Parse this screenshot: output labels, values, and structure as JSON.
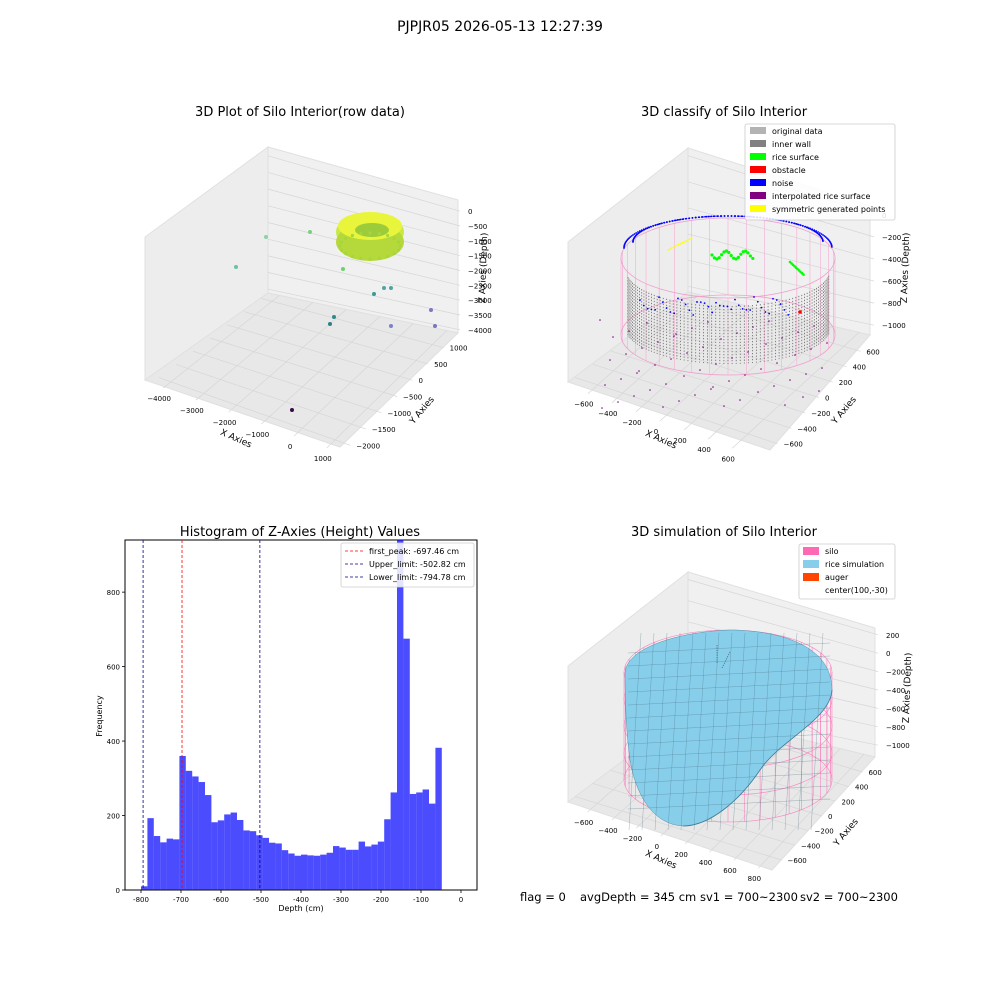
{
  "figure": {
    "suptitle": "PJPJR05 2026-05-13 12:27:39",
    "footer": {
      "flag": "flag = 0",
      "avg_depth": "avgDepth = 345 cm",
      "sv1": "sv1 = 700~2300",
      "sv2": "sv2 = 700~2300"
    }
  },
  "colors": {
    "hist_bar": "#0000ff",
    "first_peak": "#ff0000",
    "limits": "#00008b",
    "original": "#b3b3b3",
    "inner_wall": "#808080",
    "rice_surface": "#00ff00",
    "obstacle": "#ff0000",
    "noise": "#0000ff",
    "interp_surface": "#800080",
    "symmetric": "#ffff00",
    "silo": "#ff69b4",
    "rice_sim": "#87ceeb",
    "auger": "#ff4500"
  },
  "chart_data": [
    {
      "type": "scatter",
      "title": "3D Plot of Silo Interior(row data)",
      "xlabel": "X Axies",
      "ylabel": "Y Axies",
      "zlabel": "Z Axies (Depth)",
      "x_ticks": [
        "−4000",
        "−3000",
        "−2000",
        "−1000",
        "0",
        "1000"
      ],
      "y_ticks": [
        "−2000",
        "−1500",
        "−1000",
        "−500",
        "0",
        "500",
        "1000"
      ],
      "z_ticks": [
        "0",
        "−500",
        "−1000",
        "−1500",
        "−2000",
        "−2500",
        "−3000",
        "−3500",
        "−4000"
      ],
      "grid": true
    },
    {
      "type": "scatter",
      "title": "3D classify of Silo Interior",
      "xlabel": "X Axies",
      "ylabel": "Y Axies",
      "zlabel": "Z Axies (Depth)",
      "x_ticks": [
        "−600",
        "−400",
        "−200",
        "0",
        "200",
        "400",
        "600"
      ],
      "y_ticks": [
        "−600",
        "−400",
        "−200",
        "0",
        "200",
        "400",
        "600"
      ],
      "z_ticks": [
        "0",
        "−200",
        "−400",
        "−600",
        "−800",
        "−1000"
      ],
      "legend": [
        "original data",
        "inner wall",
        "rice surface",
        "obstacle",
        "noise",
        "interpolated rice surface",
        "symmetric generated points"
      ],
      "legend_placement": "top-right",
      "grid": true
    },
    {
      "type": "bar",
      "title": "Histogram of Z-Axies (Height) Values",
      "xlabel": "Depth (cm)",
      "ylabel": "Frequency",
      "xlim": [
        -840,
        40
      ],
      "ylim": [
        0,
        940
      ],
      "x_ticks": [
        -800,
        -700,
        -600,
        -500,
        -400,
        -300,
        -200,
        -100,
        0
      ],
      "y_ticks": [
        0,
        200,
        400,
        600,
        800
      ],
      "bin_start": -800,
      "bin_width": 16,
      "values": [
        10,
        193,
        145,
        128,
        138,
        136,
        360,
        320,
        305,
        290,
        255,
        182,
        187,
        203,
        208,
        188,
        160,
        158,
        147,
        140,
        127,
        125,
        107,
        98,
        92,
        95,
        93,
        92,
        95,
        100,
        118,
        114,
        108,
        108,
        130,
        117,
        122,
        130,
        190,
        262,
        940,
        675,
        258,
        262,
        270,
        232,
        382
      ],
      "lines": [
        {
          "name": "first_peak: -697.46 cm",
          "x": -697.46,
          "style": "red"
        },
        {
          "name": "Upper_limit: -502.82 cm",
          "x": -502.82,
          "style": "blue"
        },
        {
          "name": "Lower_limit: -794.78 cm",
          "x": -794.78,
          "style": "blue"
        }
      ],
      "legend_placement": "top-right",
      "grid": false
    },
    {
      "type": "area",
      "title": "3D simulation of Silo Interior",
      "xlabel": "X Axies",
      "ylabel": "Y Axies",
      "zlabel": "Z Axies (Depth)",
      "x_ticks": [
        "−600",
        "−400",
        "−200",
        "0",
        "200",
        "400",
        "600",
        "800"
      ],
      "y_ticks": [
        "−600",
        "−400",
        "−200",
        "0",
        "200",
        "400",
        "600"
      ],
      "z_ticks": [
        "200",
        "0",
        "−200",
        "−400",
        "−600",
        "−800",
        "−1000"
      ],
      "legend": [
        "silo",
        "rice simulation",
        "auger",
        "center(100,-30)"
      ],
      "legend_placement": "top-right",
      "grid": true
    }
  ]
}
